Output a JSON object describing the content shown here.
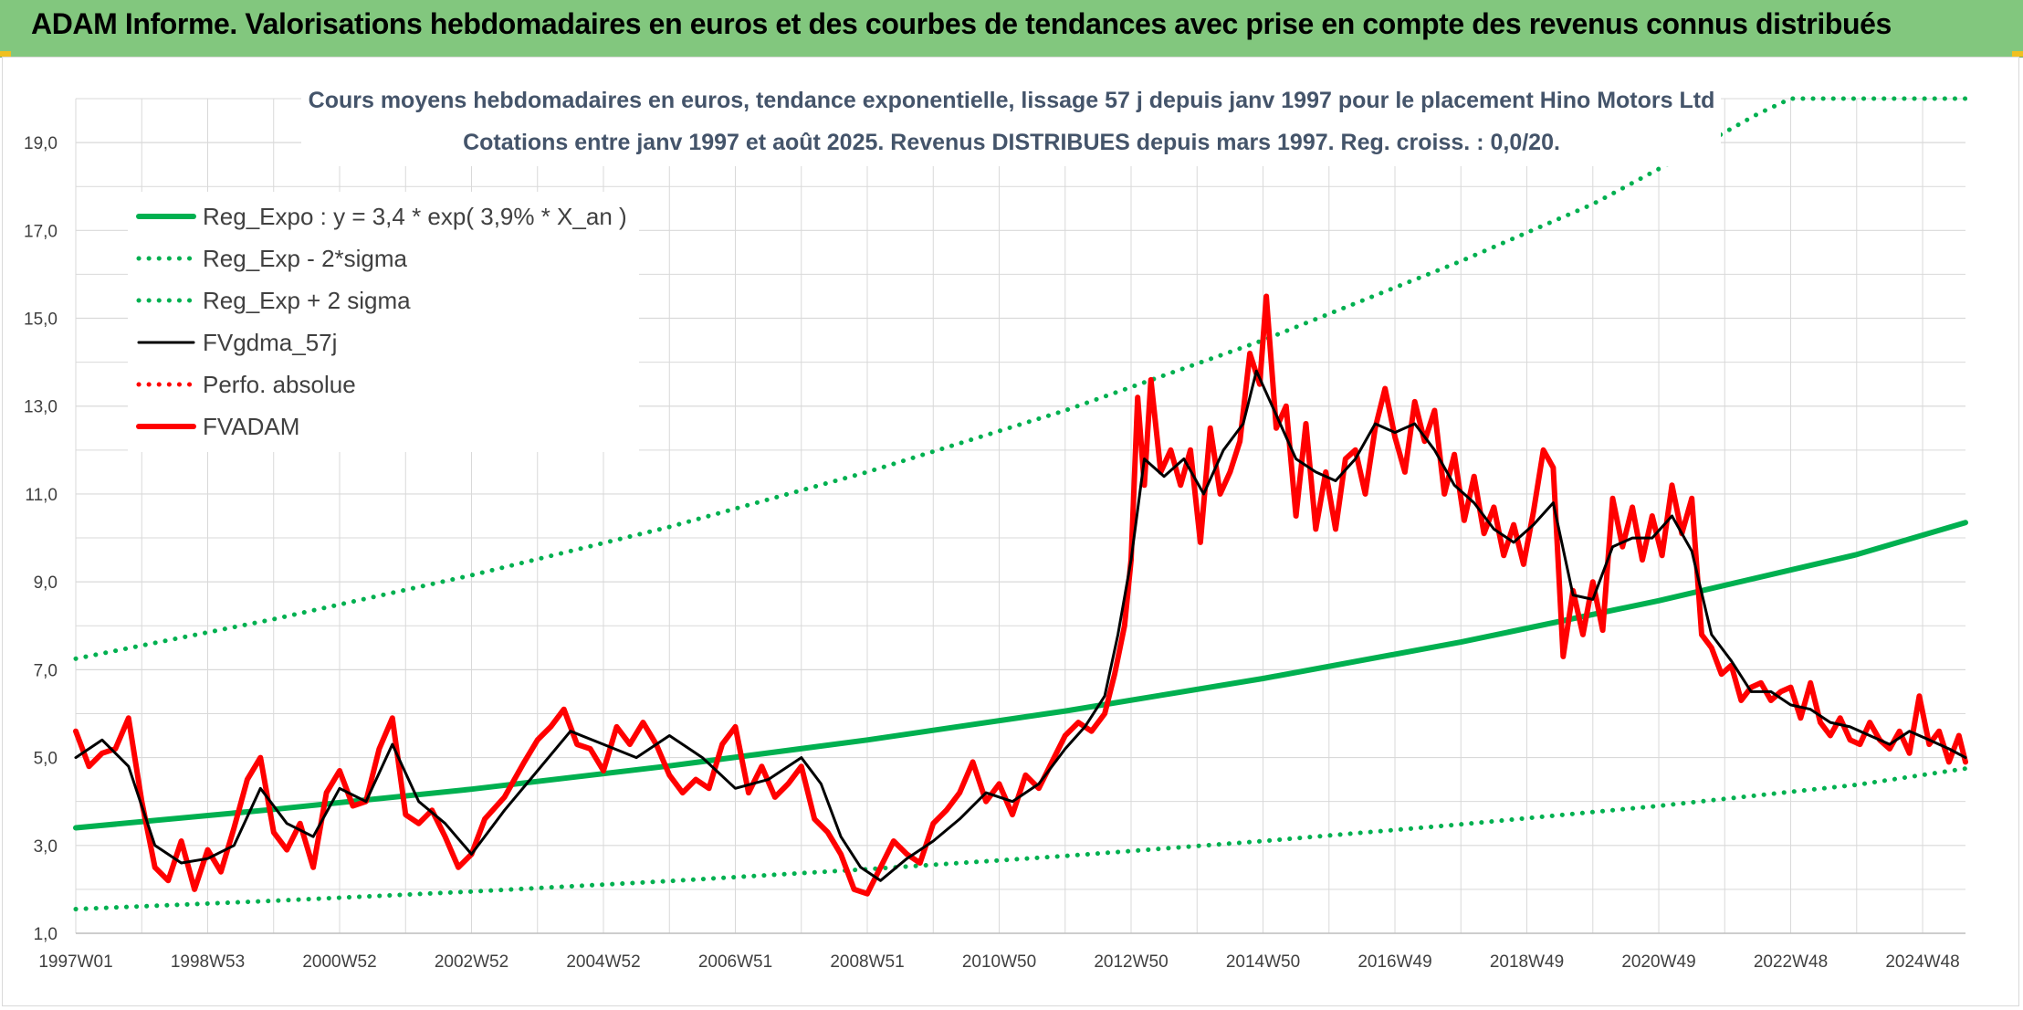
{
  "banner": {
    "title": "ADAM Informe. Valorisations hebdomadaires en euros et des courbes de tendances avec prise en compte des revenus connus distribués"
  },
  "colors": {
    "banner_bg": "#82c77e",
    "trend": "#00b050",
    "smooth": "#000000",
    "adam": "#ff0000",
    "grid": "#d9d9d9"
  },
  "chart_data": {
    "type": "line",
    "title": "Cours moyens hebdomadaires en euros, tendance exponentielle, lissage 57 j depuis janv 1997 pour le placement Hino Motors Ltd",
    "subtitle": "Cotations entre janv 1997 et août 2025. Revenus DISTRIBUES depuis mars 1997. Reg. croiss. : 0,0/20.",
    "xlabel": "",
    "ylabel": "",
    "ylim": [
      1,
      20
    ],
    "x_range": [
      1997.0,
      2025.65
    ],
    "yticks": [
      "1,0",
      "3,0",
      "5,0",
      "7,0",
      "9,0",
      "11,0",
      "13,0",
      "15,0",
      "17,0",
      "19,0"
    ],
    "ytick_values": [
      1,
      3,
      5,
      7,
      9,
      11,
      13,
      15,
      17,
      19
    ],
    "xticks": [
      "1997W01",
      "1998W53",
      "2000W52",
      "2002W52",
      "2004W52",
      "2006W51",
      "2008W51",
      "2010W50",
      "2012W50",
      "2014W50",
      "2016W49",
      "2018W49",
      "2020W49",
      "2022W48",
      "2024W48"
    ],
    "xtick_values": [
      1997.0,
      1999.0,
      2001.0,
      2003.0,
      2005.0,
      2007.0,
      2009.0,
      2011.0,
      2013.0,
      2015.0,
      2017.0,
      2019.0,
      2021.0,
      2023.0,
      2025.0
    ],
    "grid": true,
    "legend_position": "top-left",
    "series": [
      {
        "name": "Reg_Expo : y = 3,4 * exp( 3,9% *  X_an )",
        "style": "solid-thick",
        "color": "#00b050",
        "x": [
          1997.0,
          2000.0,
          2003.0,
          2006.0,
          2009.0,
          2012.0,
          2015.0,
          2018.0,
          2021.0,
          2024.0,
          2025.65
        ],
        "y": [
          3.4,
          3.82,
          4.28,
          4.81,
          5.4,
          6.06,
          6.8,
          7.63,
          8.57,
          9.62,
          10.35
        ]
      },
      {
        "name": "Reg_Exp - 2*sigma",
        "style": "dotted",
        "color": "#00b050",
        "x": [
          1997.0,
          2000.0,
          2003.0,
          2006.0,
          2009.0,
          2012.0,
          2015.0,
          2018.0,
          2021.0,
          2024.0,
          2025.65
        ],
        "y": [
          1.55,
          1.74,
          1.95,
          2.19,
          2.46,
          2.76,
          3.1,
          3.48,
          3.9,
          4.38,
          4.75
        ]
      },
      {
        "name": "Reg_Exp + 2 sigma",
        "style": "dotted",
        "color": "#00b050",
        "x": [
          1997.0,
          2000.0,
          2003.0,
          2006.0,
          2009.0,
          2012.0,
          2015.0,
          2018.0,
          2020.0,
          2021.0,
          2022.5,
          2023.0,
          2025.65
        ],
        "y": [
          7.25,
          8.15,
          9.15,
          10.25,
          11.5,
          12.9,
          14.5,
          16.3,
          17.6,
          18.4,
          19.65,
          20.0,
          20.0
        ]
      },
      {
        "name": "FVgdma_57j",
        "style": "solid-thin",
        "color": "#000000",
        "x": [
          1997.0,
          1997.4,
          1997.8,
          1998.2,
          1998.6,
          1999.0,
          1999.4,
          1999.8,
          2000.2,
          2000.6,
          2001.0,
          2001.4,
          2001.8,
          2002.2,
          2002.6,
          2003.0,
          2003.5,
          2004.0,
          2004.5,
          2005.0,
          2005.5,
          2006.0,
          2006.5,
          2007.0,
          2007.5,
          2008.0,
          2008.3,
          2008.6,
          2008.9,
          2009.2,
          2009.6,
          2010.0,
          2010.4,
          2010.8,
          2011.2,
          2011.6,
          2012.0,
          2012.3,
          2012.6,
          2012.8,
          2013.0,
          2013.2,
          2013.5,
          2013.8,
          2014.1,
          2014.4,
          2014.7,
          2014.9,
          2015.2,
          2015.5,
          2015.8,
          2016.1,
          2016.4,
          2016.7,
          2017.0,
          2017.3,
          2017.6,
          2017.9,
          2018.2,
          2018.5,
          2018.8,
          2019.1,
          2019.4,
          2019.7,
          2020.0,
          2020.3,
          2020.6,
          2020.9,
          2021.2,
          2021.5,
          2021.8,
          2022.1,
          2022.4,
          2022.7,
          2023.0,
          2023.3,
          2023.6,
          2023.9,
          2024.2,
          2024.5,
          2024.8,
          2025.1,
          2025.4,
          2025.65
        ],
        "y": [
          5.0,
          5.4,
          4.8,
          3.0,
          2.6,
          2.7,
          3.0,
          4.3,
          3.5,
          3.2,
          4.3,
          4.0,
          5.3,
          4.0,
          3.5,
          2.8,
          3.8,
          4.7,
          5.6,
          5.3,
          5.0,
          5.5,
          5.0,
          4.3,
          4.5,
          5.0,
          4.4,
          3.2,
          2.5,
          2.2,
          2.7,
          3.1,
          3.6,
          4.2,
          4.0,
          4.4,
          5.2,
          5.7,
          6.4,
          7.8,
          9.5,
          11.8,
          11.4,
          11.8,
          11.0,
          12.0,
          12.6,
          13.8,
          12.8,
          11.8,
          11.5,
          11.3,
          11.8,
          12.6,
          12.4,
          12.6,
          12.0,
          11.2,
          10.8,
          10.2,
          9.9,
          10.3,
          10.8,
          8.7,
          8.6,
          9.8,
          10.0,
          10.0,
          10.5,
          9.7,
          7.8,
          7.2,
          6.5,
          6.5,
          6.2,
          6.1,
          5.8,
          5.7,
          5.5,
          5.3,
          5.6,
          5.4,
          5.2,
          5.0
        ]
      },
      {
        "name": "Perfo. absolue",
        "style": "dotted",
        "color": "#ff0000",
        "x": [],
        "y": []
      },
      {
        "name": "FVADAM",
        "style": "solid-thick",
        "color": "#ff0000",
        "x": [
          1997.0,
          1997.2,
          1997.4,
          1997.6,
          1997.8,
          1998.0,
          1998.2,
          1998.4,
          1998.6,
          1998.8,
          1999.0,
          1999.2,
          1999.4,
          1999.6,
          1999.8,
          2000.0,
          2000.2,
          2000.4,
          2000.6,
          2000.8,
          2001.0,
          2001.2,
          2001.4,
          2001.6,
          2001.8,
          2002.0,
          2002.2,
          2002.4,
          2002.6,
          2002.8,
          2003.0,
          2003.2,
          2003.5,
          2003.8,
          2004.0,
          2004.2,
          2004.4,
          2004.6,
          2004.8,
          2005.0,
          2005.2,
          2005.4,
          2005.6,
          2005.8,
          2006.0,
          2006.2,
          2006.4,
          2006.6,
          2006.8,
          2007.0,
          2007.2,
          2007.4,
          2007.6,
          2007.8,
          2008.0,
          2008.2,
          2008.4,
          2008.6,
          2008.8,
          2009.0,
          2009.2,
          2009.4,
          2009.6,
          2009.8,
          2010.0,
          2010.2,
          2010.4,
          2010.6,
          2010.8,
          2011.0,
          2011.2,
          2011.4,
          2011.6,
          2011.8,
          2012.0,
          2012.2,
          2012.4,
          2012.6,
          2012.75,
          2012.9,
          2013.0,
          2013.1,
          2013.2,
          2013.3,
          2013.45,
          2013.6,
          2013.75,
          2013.9,
          2014.05,
          2014.2,
          2014.35,
          2014.5,
          2014.65,
          2014.8,
          2014.95,
          2015.05,
          2015.2,
          2015.35,
          2015.5,
          2015.65,
          2015.8,
          2015.95,
          2016.1,
          2016.25,
          2016.4,
          2016.55,
          2016.7,
          2016.85,
          2017.0,
          2017.15,
          2017.3,
          2017.45,
          2017.6,
          2017.75,
          2017.9,
          2018.05,
          2018.2,
          2018.35,
          2018.5,
          2018.65,
          2018.8,
          2018.95,
          2019.1,
          2019.25,
          2019.4,
          2019.55,
          2019.7,
          2019.85,
          2020.0,
          2020.15,
          2020.3,
          2020.45,
          2020.6,
          2020.75,
          2020.9,
          2021.05,
          2021.2,
          2021.35,
          2021.5,
          2021.65,
          2021.8,
          2021.95,
          2022.1,
          2022.25,
          2022.4,
          2022.55,
          2022.7,
          2022.85,
          2023.0,
          2023.15,
          2023.3,
          2023.45,
          2023.6,
          2023.75,
          2023.9,
          2024.05,
          2024.2,
          2024.35,
          2024.5,
          2024.65,
          2024.8,
          2024.95,
          2025.1,
          2025.25,
          2025.4,
          2025.55,
          2025.65
        ],
        "y": [
          5.6,
          4.8,
          5.1,
          5.2,
          5.9,
          4.0,
          2.5,
          2.2,
          3.1,
          2.0,
          2.9,
          2.4,
          3.4,
          4.5,
          5.0,
          3.3,
          2.9,
          3.5,
          2.5,
          4.2,
          4.7,
          3.9,
          4.0,
          5.2,
          5.9,
          3.7,
          3.5,
          3.8,
          3.2,
          2.5,
          2.8,
          3.6,
          4.1,
          4.9,
          5.4,
          5.7,
          6.1,
          5.3,
          5.2,
          4.7,
          5.7,
          5.3,
          5.8,
          5.3,
          4.6,
          4.2,
          4.5,
          4.3,
          5.3,
          5.7,
          4.2,
          4.8,
          4.1,
          4.4,
          4.8,
          3.6,
          3.3,
          2.8,
          2.0,
          1.9,
          2.5,
          3.1,
          2.8,
          2.6,
          3.5,
          3.8,
          4.2,
          4.9,
          4.0,
          4.4,
          3.7,
          4.6,
          4.3,
          4.9,
          5.5,
          5.8,
          5.6,
          6.0,
          6.9,
          8.0,
          9.5,
          13.2,
          11.2,
          13.6,
          11.5,
          12.0,
          11.2,
          12.0,
          9.9,
          12.5,
          11.0,
          11.5,
          12.2,
          14.2,
          13.5,
          15.5,
          12.5,
          13.0,
          10.5,
          12.6,
          10.2,
          11.5,
          10.2,
          11.8,
          12.0,
          11.0,
          12.5,
          13.4,
          12.3,
          11.5,
          13.1,
          12.2,
          12.9,
          11.0,
          11.9,
          10.4,
          11.4,
          10.1,
          10.7,
          9.6,
          10.3,
          9.4,
          10.6,
          12.0,
          11.6,
          7.3,
          8.8,
          7.8,
          9.0,
          7.9,
          10.9,
          9.8,
          10.7,
          9.5,
          10.5,
          9.6,
          11.2,
          10.1,
          10.9,
          7.8,
          7.5,
          6.9,
          7.1,
          6.3,
          6.6,
          6.7,
          6.3,
          6.5,
          6.6,
          5.9,
          6.7,
          5.8,
          5.5,
          5.9,
          5.4,
          5.3,
          5.8,
          5.4,
          5.2,
          5.6,
          5.1,
          6.4,
          5.3,
          5.6,
          4.9,
          5.5,
          4.9
        ]
      }
    ]
  }
}
